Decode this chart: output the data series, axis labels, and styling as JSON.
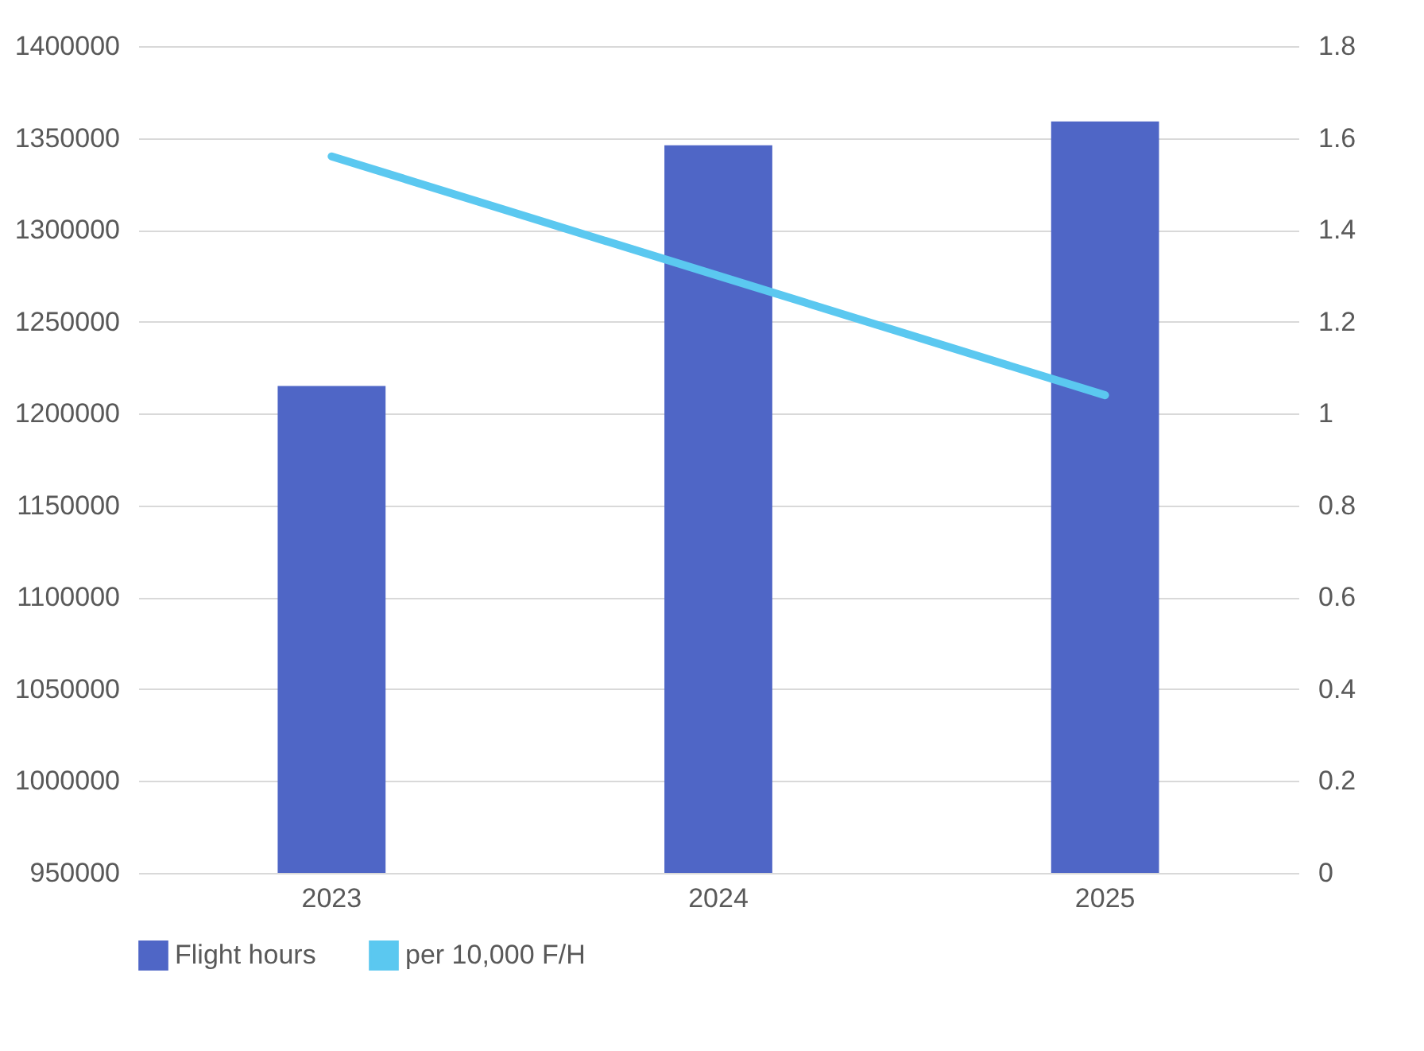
{
  "chart_data": {
    "type": "bar",
    "categories": [
      "2023",
      "2024",
      "2025"
    ],
    "series": [
      {
        "name": "Flight hours",
        "color": "#4f66c6",
        "values": [
          1215000,
          1346000,
          1359000
        ]
      },
      {
        "name": "per 10,000 F/H",
        "type": "line",
        "axis": "y2",
        "color": "#5bc8f0",
        "values": [
          1.56,
          1.3,
          1.04
        ]
      }
    ],
    "ylim": [
      950000,
      1400000
    ],
    "yticks": [
      950000,
      1000000,
      1050000,
      1100000,
      1150000,
      1200000,
      1250000,
      1300000,
      1350000,
      1400000
    ],
    "y2lim": [
      0,
      1.8
    ],
    "y2ticks": [
      0,
      0.2,
      0.4,
      0.6,
      0.8,
      1,
      1.2,
      1.4,
      1.6,
      1.8
    ],
    "grid": "y",
    "legend": "bottom"
  }
}
